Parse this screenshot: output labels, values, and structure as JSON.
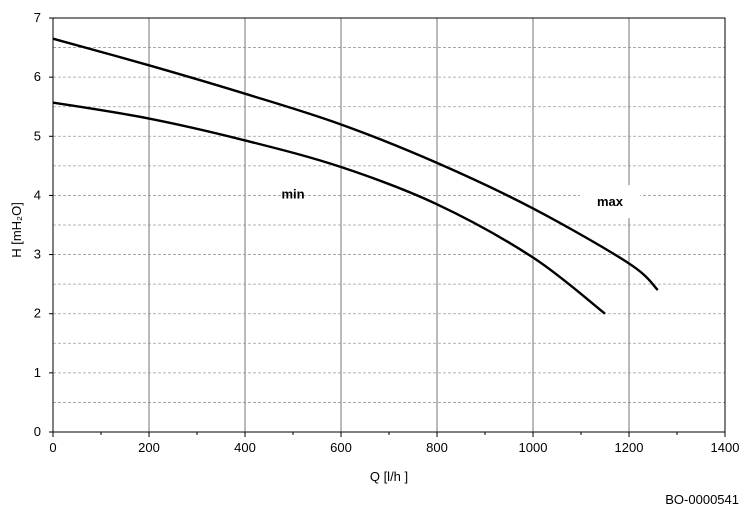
{
  "chart_data": {
    "type": "line",
    "xlabel": "Q [l/h ]",
    "ylabel": "H [mH₂O]",
    "xlim": [
      0,
      1400
    ],
    "ylim": [
      0,
      7
    ],
    "x_ticks": [
      0,
      200,
      400,
      600,
      800,
      1000,
      1200,
      1400
    ],
    "y_ticks": [
      0,
      1,
      2,
      3,
      4,
      5,
      6,
      7
    ],
    "grid": true,
    "series": [
      {
        "name": "max",
        "x": [
          0,
          200,
          400,
          600,
          800,
          1000,
          1200,
          1260
        ],
        "y": [
          6.65,
          6.2,
          5.72,
          5.2,
          4.55,
          3.78,
          2.85,
          2.4
        ]
      },
      {
        "name": "min",
        "x": [
          0,
          200,
          400,
          600,
          800,
          1000,
          1150
        ],
        "y": [
          5.57,
          5.3,
          4.93,
          4.48,
          3.85,
          2.95,
          2.0
        ]
      }
    ]
  },
  "figure_id": "BO-0000541"
}
